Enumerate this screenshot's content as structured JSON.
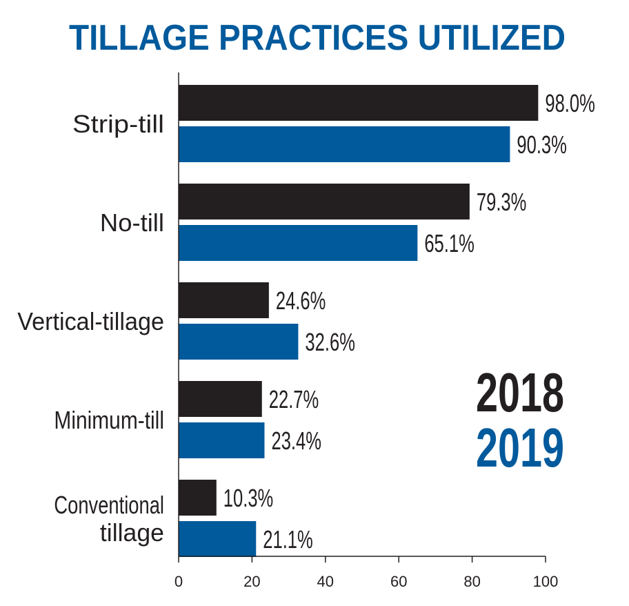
{
  "chart_data": {
    "type": "bar",
    "orientation": "horizontal",
    "title": "TILLAGE PRACTICES UTILIZED",
    "categories": [
      "Strip-till",
      "No-till",
      "Vertical-tillage",
      "Minimum-till",
      "Conventional tillage"
    ],
    "category_label_lines": [
      [
        "Strip-till"
      ],
      [
        "No-till"
      ],
      [
        "Vertical-tillage"
      ],
      [
        "Minimum-till"
      ],
      [
        "Conventional",
        "tillage"
      ]
    ],
    "series": [
      {
        "name": "2018",
        "values": [
          98.0,
          79.3,
          24.6,
          22.7,
          10.3
        ],
        "labels": [
          "98.0%",
          "79.3%",
          "24.6%",
          "22.7%",
          "10.3%"
        ]
      },
      {
        "name": "2019",
        "values": [
          90.3,
          65.1,
          32.6,
          23.4,
          21.1
        ],
        "labels": [
          "90.3%",
          "65.1%",
          "32.6%",
          "23.4%",
          "21.1%"
        ]
      }
    ],
    "xlim": [
      0,
      100
    ],
    "xticks": [
      0,
      20,
      40,
      60,
      80,
      100
    ],
    "xtick_labels": [
      "0",
      "20",
      "40",
      "60",
      "80",
      "100"
    ],
    "grid": false,
    "legend": {
      "placement": "bottom-right",
      "entries": [
        "2018",
        "2019"
      ]
    },
    "colors": {
      "2018": "#231f20",
      "2019": "#005a9c",
      "title": "#005a9c",
      "text": "#231f20"
    }
  }
}
